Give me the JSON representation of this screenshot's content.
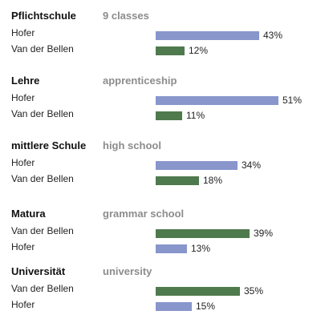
{
  "colors": {
    "Hofer": "#8896cc",
    "Van der Bellen": "#4f7a4d"
  },
  "chart_data": {
    "type": "bar",
    "orientation": "horizontal",
    "value_suffix": "%",
    "groups": [
      {
        "title": "Pflichtschule",
        "subtitle": "9 classes",
        "bars": [
          {
            "name": "Hofer",
            "value": 43
          },
          {
            "name": "Van der Bellen",
            "value": 12
          }
        ]
      },
      {
        "title": "Lehre",
        "subtitle": "apprenticeship",
        "bars": [
          {
            "name": "Hofer",
            "value": 51
          },
          {
            "name": "Van der Bellen",
            "value": 11
          }
        ]
      },
      {
        "title": "mittlere Schule",
        "subtitle": "high school",
        "bars": [
          {
            "name": "Hofer",
            "value": 34
          },
          {
            "name": "Van der Bellen",
            "value": 18
          }
        ]
      },
      {
        "title": "Matura",
        "subtitle": "grammar school",
        "bars": [
          {
            "name": "Van der Bellen",
            "value": 39
          },
          {
            "name": "Hofer",
            "value": 13
          }
        ]
      },
      {
        "title": "Universität",
        "subtitle": "university",
        "bars": [
          {
            "name": "Van der Bellen",
            "value": 35
          },
          {
            "name": "Hofer",
            "value": 15
          }
        ]
      }
    ]
  }
}
